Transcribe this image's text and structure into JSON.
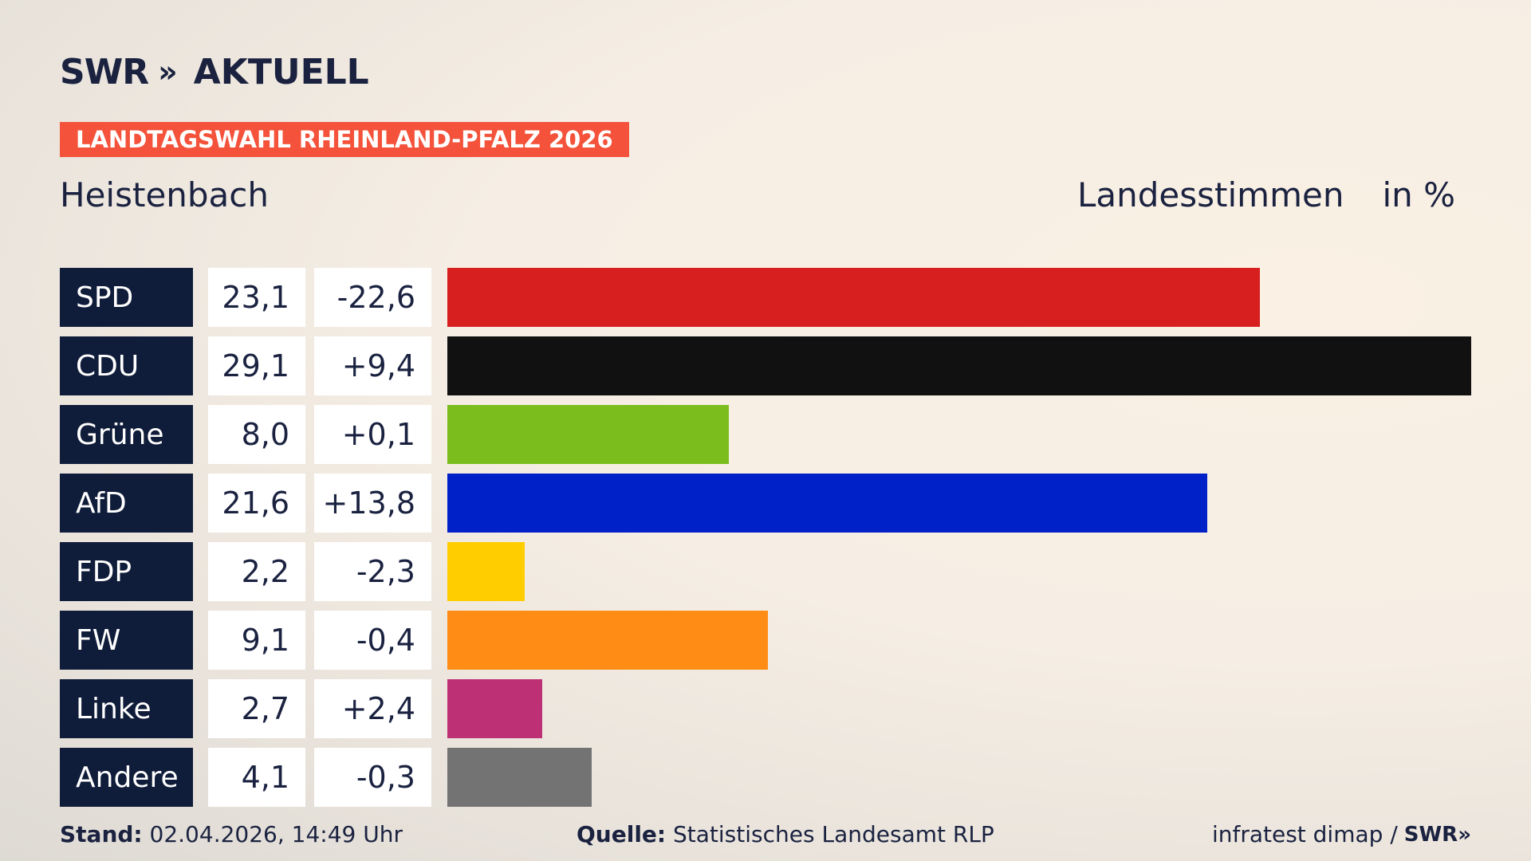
{
  "brand": {
    "swr": "SWR",
    "chevrons": "»",
    "aktuell": "AKTUELL"
  },
  "tag": "LANDTAGSWAHL RHEINLAND-PFALZ 2026",
  "place": "Heistenbach",
  "measure": {
    "label": "Landesstimmen",
    "unit": "in %"
  },
  "chart_data": {
    "type": "bar",
    "orientation": "horizontal",
    "categories": [
      "SPD",
      "CDU",
      "Grüne",
      "AfD",
      "FDP",
      "FW",
      "Linke",
      "Andere"
    ],
    "values": [
      23.1,
      29.1,
      8.0,
      21.6,
      2.2,
      9.1,
      2.7,
      4.1
    ],
    "value_labels": [
      "23,1",
      "29,1",
      "8,0",
      "21,6",
      "2,2",
      "9,1",
      "2,7",
      "4,1"
    ],
    "change_labels": [
      "-22,6",
      "+9,4",
      "+0,1",
      "+13,8",
      "-2,3",
      "-0,4",
      "+2,4",
      "-0,3"
    ],
    "changes": [
      -22.6,
      9.4,
      0.1,
      13.8,
      -2.3,
      -0.4,
      2.4,
      -0.3
    ],
    "colors": [
      "#d71f1f",
      "#111111",
      "#7bbd1c",
      "#0021c8",
      "#ffcd00",
      "#ff8c14",
      "#be3075",
      "#737373"
    ],
    "xlim": [
      0,
      29.1
    ],
    "grid": false,
    "legend": "none"
  },
  "footer": {
    "stand_label": "Stand:",
    "stand_value": "02.04.2026, 14:49 Uhr",
    "quelle_label": "Quelle:",
    "quelle_value": "Statistisches Landesamt RLP",
    "credit": "infratest dimap /",
    "credit_brand": "SWR",
    "credit_chevrons": "»"
  }
}
